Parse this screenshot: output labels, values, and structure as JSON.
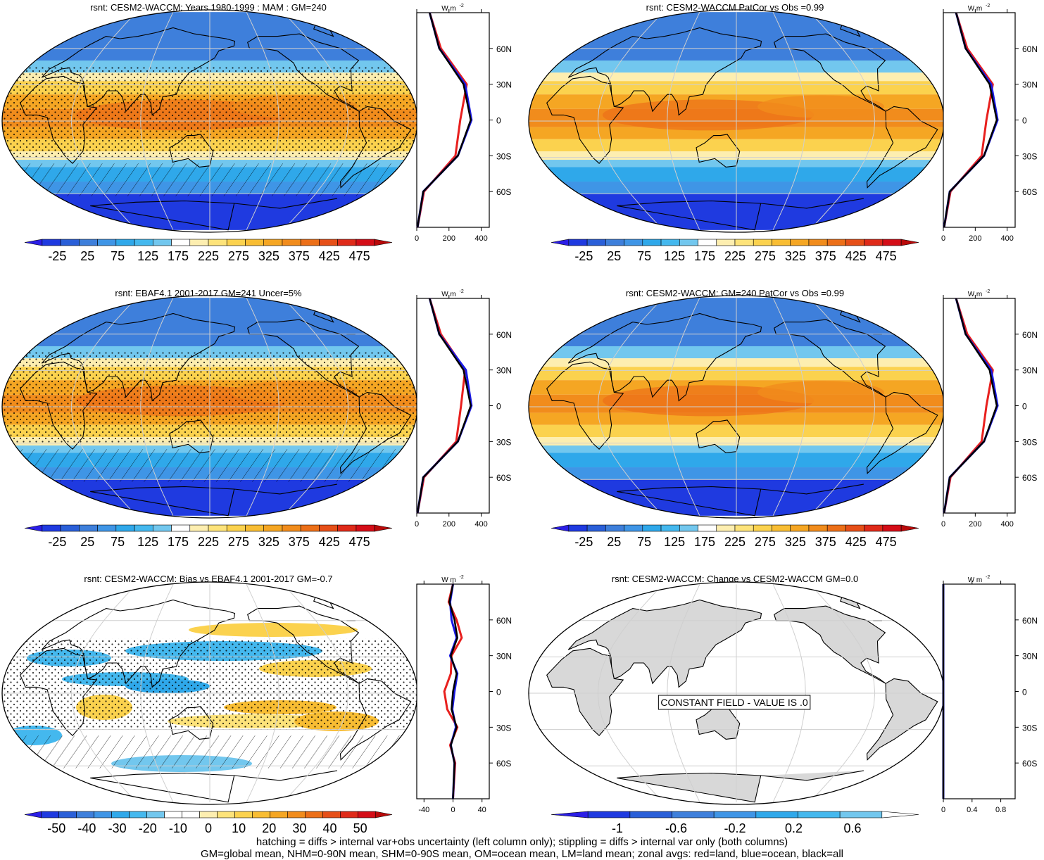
{
  "panels": [
    {
      "title": "rsnt: CESM2-WACCM: Years 1980-1999 : MAM : GM=240",
      "kind": "clim",
      "hatch": true,
      "stipple": true
    },
    {
      "title": "rsnt: CESM2-WACCM PatCor vs Obs =0.99",
      "kind": "clim",
      "hatch": false,
      "stipple": false
    },
    {
      "title": "rsnt: EBAF4.1 2001-2017 GM=241 Uncer=5%",
      "kind": "clim",
      "hatch": true,
      "stipple": true
    },
    {
      "title": "rsnt: CESM2-WACCM: GM=240 PatCor vs Obs =0.99",
      "kind": "clim",
      "hatch": false,
      "stipple": false
    },
    {
      "title": "rsnt: CESM2-WACCM: Bias vs EBAF4.1 2001-2017 GM=-0.7",
      "kind": "bias",
      "hatch": true,
      "stipple": true
    },
    {
      "title": "rsnt: CESM2-WACCM: Change vs CESM2-WACCM GM=0.0",
      "kind": "constant",
      "hatch": false,
      "stipple": false,
      "message": "CONSTANT FIELD - VALUE IS .0"
    }
  ],
  "lat_labels": [
    "60N",
    "30N",
    "0",
    "30S",
    "60S"
  ],
  "units_label": "W m",
  "units_exp": "-2",
  "colorbars": {
    "clim": {
      "labels": [
        "-25",
        "25",
        "75",
        "125",
        "175",
        "225",
        "275",
        "325",
        "375",
        "425",
        "475"
      ],
      "colors": [
        "#2b1ee6",
        "#1f3ae0",
        "#2a5fd8",
        "#3e7fdb",
        "#3f95e6",
        "#2fa8ea",
        "#44b8ee",
        "#72c7ee",
        "#ffffff",
        "#fdeeb0",
        "#fde37a",
        "#fbd24e",
        "#f8bd33",
        "#f5a623",
        "#f18c1c",
        "#ec6f18",
        "#e64f18",
        "#df2a19",
        "#d40d17",
        "#b90a0a"
      ]
    },
    "bias": {
      "labels": [
        "-50",
        "-40",
        "-30",
        "-20",
        "-10",
        "0",
        "10",
        "20",
        "30",
        "40",
        "50"
      ],
      "colors": [
        "#2b1ee6",
        "#1f3ae0",
        "#2a5fd8",
        "#3e7fdb",
        "#3f95e6",
        "#2fa8ea",
        "#44b8ee",
        "#72c7ee",
        "#ffffff",
        "#ffffff",
        "#fdeeb0",
        "#fde37a",
        "#fbd24e",
        "#f8bd33",
        "#f5a623",
        "#f18c1c",
        "#ec6f18",
        "#e64f18",
        "#df2a19",
        "#d40d17",
        "#b90a0a"
      ]
    },
    "change": {
      "labels": [
        "-1",
        "-0.6",
        "-0.2",
        "0.2",
        "0.6"
      ],
      "colors": [
        "#2b1ee6",
        "#1f3ae0",
        "#2a5fd8",
        "#3e7fdb",
        "#3f95e6",
        "#2fa8ea",
        "#44b8ee",
        "#72c7ee",
        "#ffffff"
      ]
    }
  },
  "chart_data": [
    {
      "type": "heatmap",
      "title": "rsnt: CESM2-WACCM: Years 1980-1999 : MAM : GM=240",
      "colorbar_range": [
        -25,
        475
      ],
      "zonal_profile": {
        "type": "line",
        "xlim": [
          0,
          450
        ],
        "xticks": [
          0,
          200,
          400
        ],
        "lat": [
          -90,
          -60,
          -30,
          0,
          30,
          60,
          90
        ],
        "all": [
          5,
          40,
          255,
          335,
          290,
          140,
          80
        ],
        "land": [
          5,
          45,
          240,
          270,
          310,
          150,
          80
        ],
        "ocean": [
          5,
          40,
          255,
          340,
          300,
          140,
          80
        ]
      }
    },
    {
      "type": "heatmap",
      "title": "rsnt: CESM2-WACCM PatCor vs Obs =0.99",
      "colorbar_range": [
        -25,
        475
      ],
      "zonal_profile": {
        "type": "line",
        "xlim": [
          0,
          450
        ],
        "xticks": [
          0,
          200,
          400
        ],
        "lat": [
          -90,
          -60,
          -30,
          0,
          30,
          60,
          90
        ],
        "all": [
          5,
          40,
          255,
          335,
          290,
          140,
          80
        ],
        "land": [
          5,
          45,
          240,
          270,
          310,
          150,
          80
        ],
        "ocean": [
          5,
          40,
          255,
          340,
          300,
          140,
          80
        ]
      }
    },
    {
      "type": "heatmap",
      "title": "rsnt: EBAF4.1 2001-2017 GM=241 Uncer=5%",
      "colorbar_range": [
        -25,
        475
      ],
      "zonal_profile": {
        "type": "line",
        "xlim": [
          0,
          450
        ],
        "xticks": [
          0,
          200,
          400
        ],
        "lat": [
          -90,
          -60,
          -30,
          0,
          30,
          60,
          90
        ],
        "all": [
          5,
          40,
          255,
          335,
          290,
          140,
          80
        ],
        "land": [
          5,
          45,
          245,
          275,
          300,
          150,
          80
        ],
        "ocean": [
          5,
          40,
          255,
          340,
          305,
          140,
          80
        ]
      }
    },
    {
      "type": "heatmap",
      "title": "rsnt: CESM2-WACCM: GM=240 PatCor vs Obs =0.99",
      "colorbar_range": [
        -25,
        475
      ],
      "zonal_profile": {
        "type": "line",
        "xlim": [
          0,
          450
        ],
        "xticks": [
          0,
          200,
          400
        ],
        "lat": [
          -90,
          -60,
          -30,
          0,
          30,
          60,
          90
        ],
        "all": [
          5,
          40,
          255,
          335,
          290,
          140,
          80
        ],
        "land": [
          5,
          45,
          240,
          270,
          310,
          150,
          80
        ],
        "ocean": [
          5,
          40,
          255,
          340,
          300,
          140,
          80
        ]
      }
    },
    {
      "type": "heatmap",
      "title": "rsnt: CESM2-WACCM: Bias vs EBAF4.1 2001-2017 GM=-0.7",
      "colorbar_range": [
        -50,
        50
      ],
      "zonal_profile": {
        "type": "line",
        "xlim": [
          -50,
          50
        ],
        "xticks": [
          -40,
          0,
          40
        ],
        "lat": [
          -90,
          -60,
          -45,
          -30,
          -15,
          0,
          15,
          30,
          45,
          60,
          75,
          90
        ],
        "all": [
          0,
          2,
          -3,
          5,
          -2,
          0,
          5,
          -3,
          6,
          2,
          -5,
          0
        ],
        "land": [
          0,
          3,
          -4,
          6,
          -8,
          -12,
          -3,
          -2,
          12,
          5,
          -6,
          0
        ],
        "ocean": [
          0,
          2,
          -3,
          4,
          -1,
          2,
          6,
          -4,
          5,
          -2,
          -4,
          0
        ]
      }
    },
    {
      "type": "heatmap",
      "title": "rsnt: CESM2-WACCM: Change vs CESM2-WACCM GM=0.0",
      "colorbar_range": [
        -1,
        1
      ],
      "zonal_profile": {
        "type": "line",
        "xlim": [
          0,
          1
        ],
        "xticks": [
          0.0,
          0.4,
          0.8
        ],
        "lat": [
          -90,
          90
        ],
        "all": [
          0,
          0
        ],
        "land": [
          0,
          0
        ],
        "ocean": [
          0,
          0
        ]
      }
    }
  ],
  "footer": {
    "line1": "hatching = diffs > internal var+obs uncertainty (left column only); stippling = diffs > internal var only (both columns)",
    "line2": "GM=global mean, NHM=0-90N mean, SHM=0-90S mean, OM=ocean mean, LM=land mean; zonal avgs: red=land, blue=ocean, black=all"
  }
}
